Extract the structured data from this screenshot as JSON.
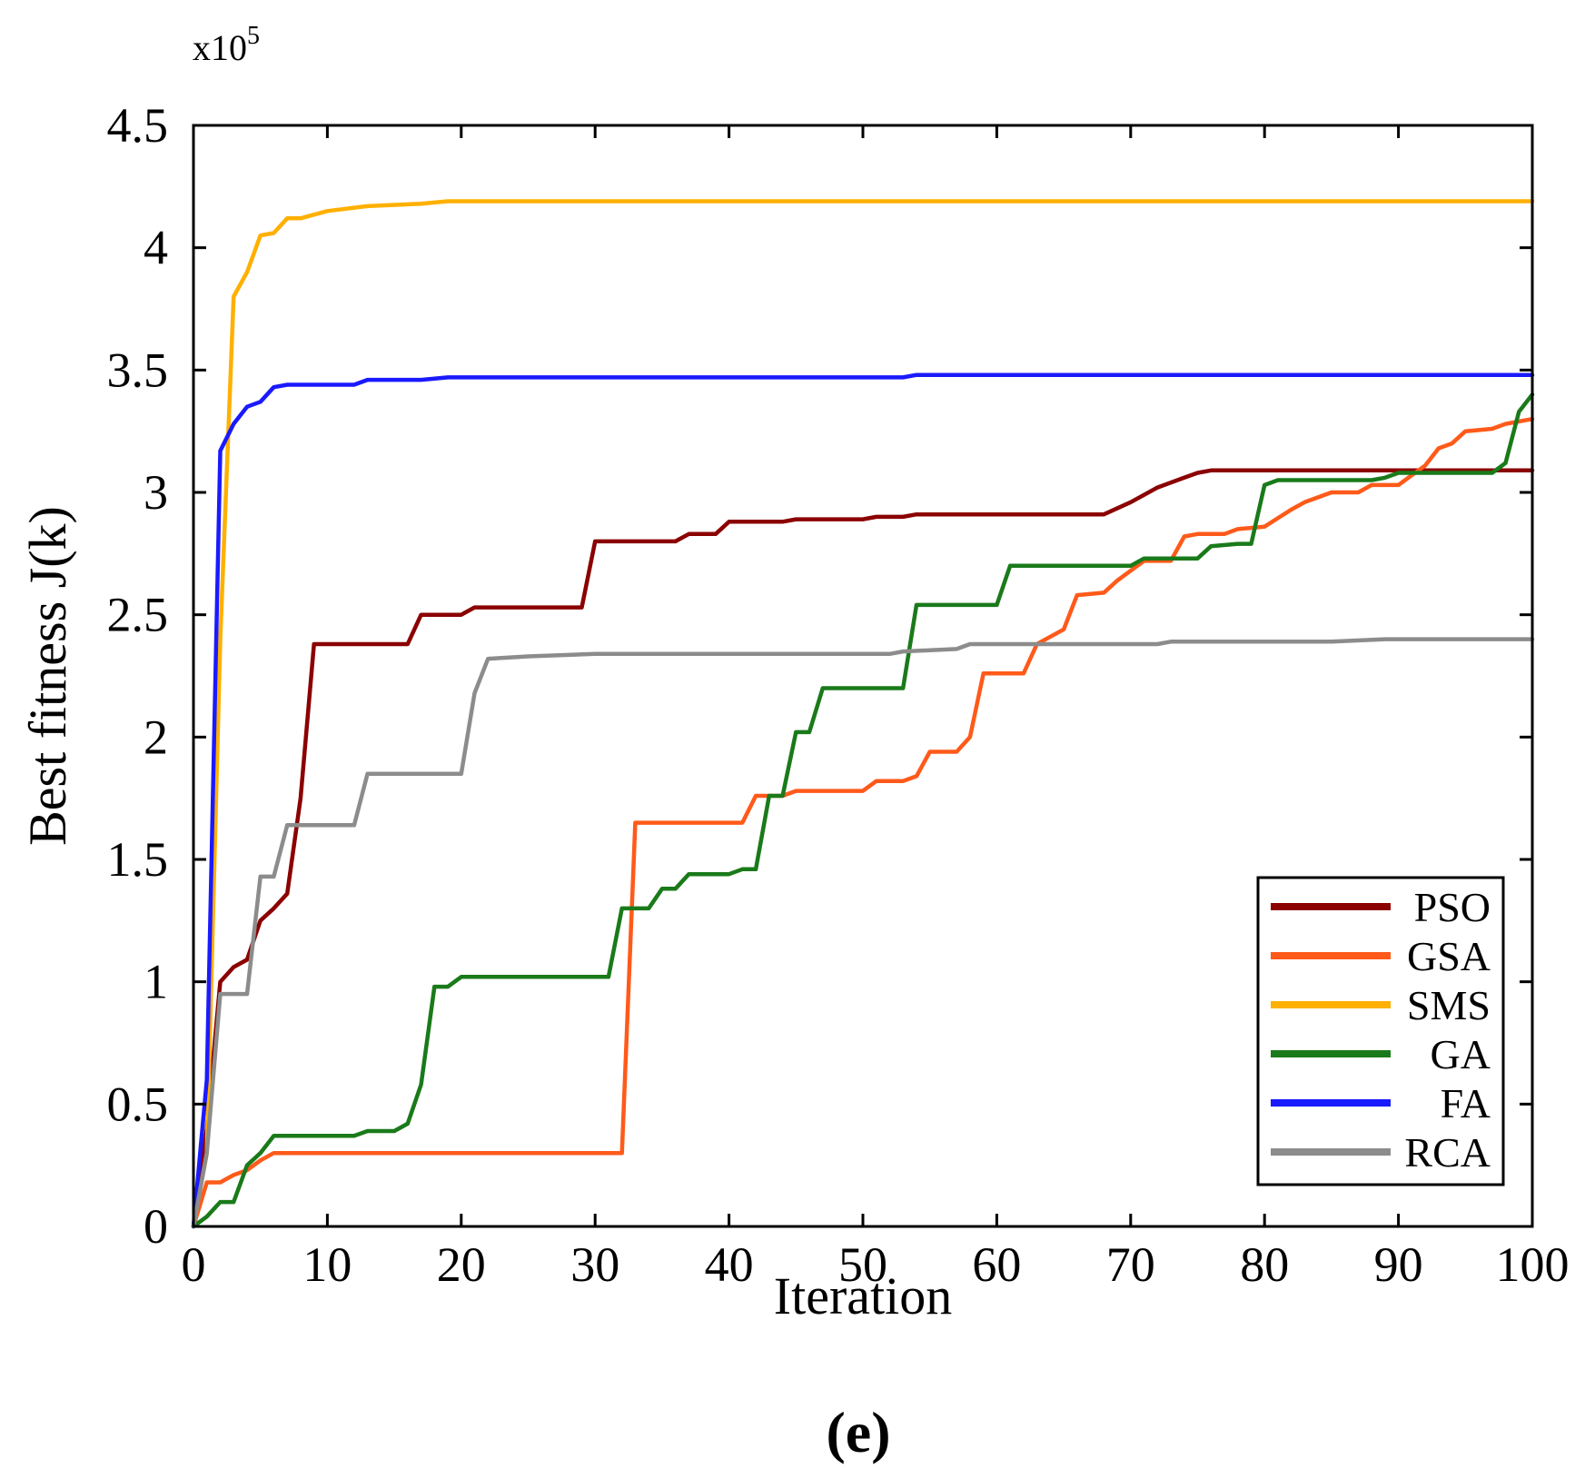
{
  "chart_data": {
    "type": "line",
    "xlabel": "Iteration",
    "ylabel": "Best fitness J(k)",
    "exponent_base": "x10",
    "exponent_power": "5",
    "panel_label": "(e)",
    "xlim": [
      0,
      100
    ],
    "ylim": [
      0,
      4.5
    ],
    "xticks": [
      0,
      10,
      20,
      30,
      40,
      50,
      60,
      70,
      80,
      90,
      100
    ],
    "xtick_labels": [
      "0",
      "10",
      "20",
      "30",
      "40",
      "50",
      "60",
      "70",
      "80",
      "90",
      "100"
    ],
    "yticks": [
      0,
      0.5,
      1,
      1.5,
      2,
      2.5,
      3,
      3.5,
      4,
      4.5
    ],
    "ytick_labels": [
      "0",
      "0.5",
      "1",
      "1.5",
      "2",
      "2.5",
      "3",
      "3.5",
      "4",
      "4.5"
    ],
    "legend_position": "bottom-right",
    "series": [
      {
        "name": "PSO",
        "color": "#8b0000",
        "points": [
          [
            0,
            0
          ],
          [
            1,
            0.4
          ],
          [
            2,
            1.0
          ],
          [
            3,
            1.06
          ],
          [
            4,
            1.09
          ],
          [
            5,
            1.25
          ],
          [
            6,
            1.3
          ],
          [
            7,
            1.36
          ],
          [
            8,
            1.75
          ],
          [
            9,
            2.38
          ],
          [
            12,
            2.38
          ],
          [
            15,
            2.38
          ],
          [
            16,
            2.38
          ],
          [
            17,
            2.5
          ],
          [
            20,
            2.5
          ],
          [
            21,
            2.53
          ],
          [
            29,
            2.53
          ],
          [
            30,
            2.8
          ],
          [
            36,
            2.8
          ],
          [
            37,
            2.83
          ],
          [
            39,
            2.83
          ],
          [
            40,
            2.88
          ],
          [
            44,
            2.88
          ],
          [
            45,
            2.89
          ],
          [
            50,
            2.89
          ],
          [
            51,
            2.9
          ],
          [
            53,
            2.9
          ],
          [
            54,
            2.91
          ],
          [
            68,
            2.91
          ],
          [
            70,
            2.96
          ],
          [
            72,
            3.02
          ],
          [
            74,
            3.06
          ],
          [
            75,
            3.08
          ],
          [
            76,
            3.09
          ],
          [
            80,
            3.09
          ],
          [
            100,
            3.09
          ]
        ]
      },
      {
        "name": "GSA",
        "color": "#ff5a1a",
        "points": [
          [
            0,
            0
          ],
          [
            1,
            0.18
          ],
          [
            2,
            0.18
          ],
          [
            3,
            0.21
          ],
          [
            4,
            0.23
          ],
          [
            5,
            0.27
          ],
          [
            6,
            0.3
          ],
          [
            31,
            0.3
          ],
          [
            32,
            0.3
          ],
          [
            33,
            1.65
          ],
          [
            41,
            1.65
          ],
          [
            42,
            1.76
          ],
          [
            44,
            1.76
          ],
          [
            45,
            1.78
          ],
          [
            50,
            1.78
          ],
          [
            51,
            1.82
          ],
          [
            53,
            1.82
          ],
          [
            54,
            1.84
          ],
          [
            55,
            1.94
          ],
          [
            57,
            1.94
          ],
          [
            58,
            2.0
          ],
          [
            59,
            2.26
          ],
          [
            62,
            2.26
          ],
          [
            63,
            2.38
          ],
          [
            65,
            2.44
          ],
          [
            66,
            2.58
          ],
          [
            68,
            2.59
          ],
          [
            69,
            2.64
          ],
          [
            71,
            2.72
          ],
          [
            72,
            2.72
          ],
          [
            73,
            2.72
          ],
          [
            74,
            2.82
          ],
          [
            75,
            2.83
          ],
          [
            77,
            2.83
          ],
          [
            78,
            2.85
          ],
          [
            80,
            2.86
          ],
          [
            82,
            2.93
          ],
          [
            83,
            2.96
          ],
          [
            85,
            3.0
          ],
          [
            87,
            3.0
          ],
          [
            88,
            3.03
          ],
          [
            90,
            3.03
          ],
          [
            91,
            3.07
          ],
          [
            92,
            3.11
          ],
          [
            93,
            3.18
          ],
          [
            94,
            3.2
          ],
          [
            95,
            3.25
          ],
          [
            97,
            3.26
          ],
          [
            98,
            3.28
          ],
          [
            100,
            3.3
          ]
        ]
      },
      {
        "name": "SMS",
        "color": "#ffb000",
        "points": [
          [
            0,
            0
          ],
          [
            1,
            0.3
          ],
          [
            2,
            2.4
          ],
          [
            3,
            3.8
          ],
          [
            4,
            3.9
          ],
          [
            5,
            4.05
          ],
          [
            6,
            4.06
          ],
          [
            7,
            4.12
          ],
          [
            8,
            4.12
          ],
          [
            10,
            4.15
          ],
          [
            13,
            4.17
          ],
          [
            17,
            4.18
          ],
          [
            19,
            4.19
          ],
          [
            30,
            4.19
          ],
          [
            100,
            4.19
          ]
        ]
      },
      {
        "name": "GA",
        "color": "#1a7a1a",
        "points": [
          [
            0,
            0
          ],
          [
            1,
            0.04
          ],
          [
            2,
            0.1
          ],
          [
            3,
            0.1
          ],
          [
            4,
            0.25
          ],
          [
            5,
            0.3
          ],
          [
            6,
            0.37
          ],
          [
            12,
            0.37
          ],
          [
            13,
            0.39
          ],
          [
            15,
            0.39
          ],
          [
            16,
            0.42
          ],
          [
            17,
            0.58
          ],
          [
            18,
            0.98
          ],
          [
            19,
            0.98
          ],
          [
            20,
            1.02
          ],
          [
            31,
            1.02
          ],
          [
            32,
            1.3
          ],
          [
            34,
            1.3
          ],
          [
            35,
            1.38
          ],
          [
            36,
            1.38
          ],
          [
            37,
            1.44
          ],
          [
            40,
            1.44
          ],
          [
            41,
            1.46
          ],
          [
            42,
            1.46
          ],
          [
            43,
            1.76
          ],
          [
            44,
            1.76
          ],
          [
            45,
            2.02
          ],
          [
            46,
            2.02
          ],
          [
            47,
            2.2
          ],
          [
            53,
            2.2
          ],
          [
            54,
            2.54
          ],
          [
            59,
            2.54
          ],
          [
            60,
            2.54
          ],
          [
            61,
            2.7
          ],
          [
            68,
            2.7
          ],
          [
            70,
            2.7
          ],
          [
            71,
            2.73
          ],
          [
            74,
            2.73
          ],
          [
            75,
            2.73
          ],
          [
            76,
            2.78
          ],
          [
            78,
            2.79
          ],
          [
            79,
            2.79
          ],
          [
            80,
            3.03
          ],
          [
            81,
            3.05
          ],
          [
            88,
            3.05
          ],
          [
            89,
            3.06
          ],
          [
            90,
            3.08
          ],
          [
            97,
            3.08
          ],
          [
            98,
            3.12
          ],
          [
            99,
            3.33
          ],
          [
            100,
            3.4
          ]
        ]
      },
      {
        "name": "FA",
        "color": "#1a1aff",
        "points": [
          [
            0,
            0
          ],
          [
            1,
            0.6
          ],
          [
            2,
            3.17
          ],
          [
            3,
            3.28
          ],
          [
            4,
            3.35
          ],
          [
            5,
            3.37
          ],
          [
            6,
            3.43
          ],
          [
            7,
            3.44
          ],
          [
            12,
            3.44
          ],
          [
            13,
            3.46
          ],
          [
            17,
            3.46
          ],
          [
            19,
            3.47
          ],
          [
            30,
            3.47
          ],
          [
            53,
            3.47
          ],
          [
            54,
            3.48
          ],
          [
            100,
            3.48
          ]
        ]
      },
      {
        "name": "RCA",
        "color": "#8c8c8c",
        "points": [
          [
            0,
            0
          ],
          [
            1,
            0.3
          ],
          [
            2,
            0.95
          ],
          [
            4,
            0.95
          ],
          [
            5,
            1.43
          ],
          [
            6,
            1.43
          ],
          [
            7,
            1.64
          ],
          [
            8,
            1.64
          ],
          [
            12,
            1.64
          ],
          [
            13,
            1.85
          ],
          [
            20,
            1.85
          ],
          [
            21,
            2.18
          ],
          [
            22,
            2.32
          ],
          [
            25,
            2.33
          ],
          [
            30,
            2.34
          ],
          [
            40,
            2.34
          ],
          [
            52,
            2.34
          ],
          [
            53,
            2.35
          ],
          [
            57,
            2.36
          ],
          [
            58,
            2.38
          ],
          [
            72,
            2.38
          ],
          [
            73,
            2.39
          ],
          [
            85,
            2.39
          ],
          [
            89,
            2.4
          ],
          [
            100,
            2.4
          ]
        ]
      }
    ]
  }
}
